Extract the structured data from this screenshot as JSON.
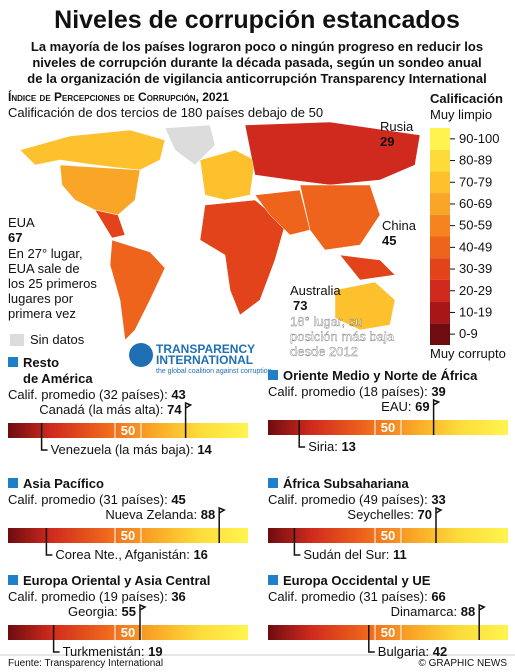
{
  "header": {
    "title": "Niveles de corrupción estancados",
    "subtitle_lines": [
      "La mayoría de los países lograron poco o ningún progreso en reducir los",
      "niveles de corrupción durante la década pasada, según un sondeo anual",
      "de la organización de vigilancia anticorrupción Transparency International"
    ]
  },
  "map": {
    "heading": "Índice de Percepciones de Corrupción, 2021",
    "caption": "Calificación de dos tercios de 180 países debajo de 50",
    "no_data": "Sin datos",
    "logo": [
      "TRANSPARENCY",
      "INTERNATIONAL",
      "the global coalition against corruption"
    ],
    "annotations": [
      {
        "country": "Rusia",
        "score": 29
      },
      {
        "country": "China",
        "score": 45
      },
      {
        "country": "EUA",
        "score": 67,
        "note": [
          "En 27° lugar,",
          "EUA sale de",
          "los 25 primeros",
          "lugares por",
          "primera vez"
        ]
      },
      {
        "country": "Australia",
        "score": 73,
        "note": [
          "18° lugar, su",
          "posición más baja",
          "desde 2012"
        ]
      }
    ]
  },
  "legend": {
    "title": "Calificación",
    "top": "Muy limpio",
    "bottom": "Muy corrupto",
    "items": [
      {
        "label": "90-100",
        "color": "#fff44f"
      },
      {
        "label": "80-89",
        "color": "#fddc3a"
      },
      {
        "label": "70-79",
        "color": "#fcc12d"
      },
      {
        "label": "60-69",
        "color": "#f9a526"
      },
      {
        "label": "50-59",
        "color": "#f5841f"
      },
      {
        "label": "40-49",
        "color": "#ee641c"
      },
      {
        "label": "30-39",
        "color": "#e2431b"
      },
      {
        "label": "20-29",
        "color": "#cf2a1d"
      },
      {
        "label": "10-19",
        "color": "#a8161a"
      },
      {
        "label": "0-9",
        "color": "#6e0c10"
      }
    ]
  },
  "bar_mid": 50,
  "regions": [
    {
      "title_lines": [
        "Resto",
        "de América"
      ],
      "average_label": "Calif. promedio (32 países):",
      "average": 43,
      "highest": {
        "label": "Canadá (la más alta):",
        "value": 74
      },
      "lowest": {
        "label": "Venezuela (la más baja):",
        "value": 14
      }
    },
    {
      "title_lines": [
        "Oriente Medio y Norte de África"
      ],
      "average_label": "Calif. promedio (18 países):",
      "average": 39,
      "highest": {
        "label": "EAU:",
        "value": 69
      },
      "lowest": {
        "label": "Siria:",
        "value": 13
      }
    },
    {
      "title_lines": [
        "Asia Pacífico"
      ],
      "average_label": "Calif. promedio (31 países):",
      "average": 45,
      "highest": {
        "label": "Nueva Zelanda:",
        "value": 88
      },
      "lowest": {
        "label": "Corea Nte., Afganistán:",
        "value": 16
      }
    },
    {
      "title_lines": [
        "África Subsahariana"
      ],
      "average_label": "Calif. promedio (49 países):",
      "average": 33,
      "highest": {
        "label": "Seychelles:",
        "value": 70
      },
      "lowest": {
        "label": "Sudán del Sur:",
        "value": 11
      }
    },
    {
      "title_lines": [
        "Europa Oriental y Asia Central"
      ],
      "average_label": "Calif. promedio (19 países):",
      "average": 36,
      "highest": {
        "label": "Georgia:",
        "value": 55
      },
      "lowest": {
        "label": "Turkmenistán:",
        "value": 19
      }
    },
    {
      "title_lines": [
        "Europa Occidental y UE"
      ],
      "average_label": "Calif. promedio (31 países):",
      "average": 66,
      "highest": {
        "label": "Dinamarca:",
        "value": 88
      },
      "lowest": {
        "label": "Bulgaria:",
        "value": 42
      }
    }
  ],
  "footer": {
    "source": "Fuente: Transparency International",
    "credit": "© GRAPHIC NEWS"
  }
}
